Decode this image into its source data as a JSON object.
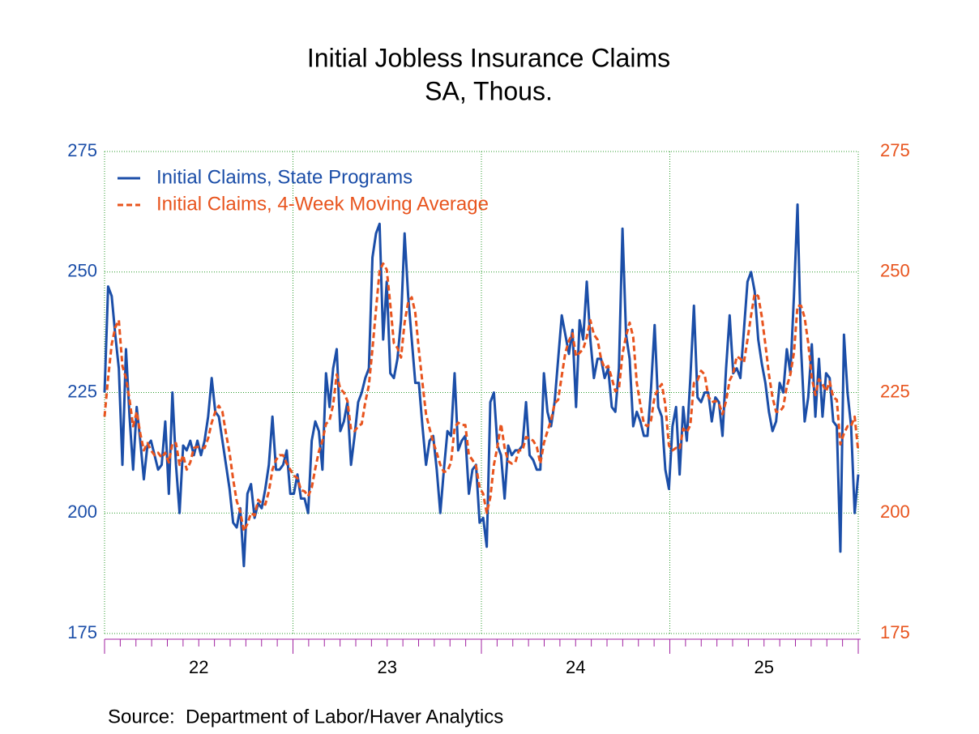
{
  "chart_data": {
    "type": "line",
    "title": "Initial Jobless Insurance Claims",
    "subtitle": "SA, Thous.",
    "source": "Source:  Department of Labor/Haver Analytics",
    "period_labels": [
      "22",
      "23",
      "24",
      "25"
    ],
    "ylim": [
      175,
      275
    ],
    "yticks": [
      175,
      200,
      225,
      250,
      275
    ],
    "y2lim": [
      175,
      275
    ],
    "y2ticks": [
      175,
      200,
      225,
      250,
      275
    ],
    "grid": true,
    "legend": "upper left",
    "series": [
      {
        "name": "Initial Claims, State Programs",
        "color": "#1b4ea8",
        "dash": "solid",
        "values": [
          225,
          247,
          245,
          237,
          230,
          210,
          234,
          220,
          209,
          222,
          215,
          207,
          214,
          215,
          212,
          209,
          210,
          219,
          204,
          225,
          210,
          200,
          214,
          213,
          215,
          212,
          215,
          212,
          215,
          220,
          228,
          221,
          220,
          215,
          210,
          205,
          198,
          197,
          201,
          189,
          204,
          206,
          199,
          202,
          201,
          205,
          210,
          220,
          209,
          209,
          210,
          213,
          204,
          204,
          208,
          203,
          203,
          200,
          215,
          219,
          217,
          209,
          229,
          222,
          230,
          234,
          217,
          219,
          223,
          210,
          216,
          223,
          225,
          228,
          230,
          253,
          258,
          260,
          236,
          248,
          229,
          228,
          232,
          240,
          258,
          245,
          236,
          227,
          227,
          218,
          210,
          215,
          216,
          209,
          200,
          209,
          217,
          216,
          229,
          213,
          215,
          216,
          204,
          209,
          210,
          198,
          199,
          193,
          223,
          225,
          214,
          212,
          203,
          214,
          212,
          213,
          213,
          214,
          223,
          212,
          211,
          209,
          209,
          229,
          221,
          218,
          223,
          232,
          241,
          237,
          233,
          238,
          222,
          240,
          236,
          248,
          236,
          228,
          232,
          232,
          228,
          230,
          222,
          221,
          230,
          259,
          237,
          232,
          218,
          221,
          219,
          216,
          216,
          226,
          239,
          222,
          220,
          209,
          205,
          218,
          222,
          208,
          222,
          215,
          228,
          243,
          224,
          223,
          225,
          225,
          219,
          224,
          223,
          216,
          230,
          241,
          229,
          230,
          228,
          238,
          248,
          250,
          246,
          236,
          231,
          227,
          221,
          217,
          219,
          227,
          225,
          234,
          229,
          245,
          264,
          234,
          219,
          224,
          235,
          220,
          232,
          220,
          229,
          228,
          219,
          218,
          192,
          237,
          225,
          218,
          200,
          208
        ]
      },
      {
        "name": "Initial Claims, 4-Week Moving Average",
        "color": "#e8541e",
        "dash": "dashed",
        "axis": "y2",
        "values": [
          220,
          228,
          235,
          238.5,
          240,
          230.5,
          228,
          223.5,
          218,
          221,
          216.5,
          213,
          214.5,
          213,
          212,
          212.5,
          211.5,
          212.5,
          210.5,
          214.5,
          214.5,
          210,
          212,
          209,
          210.5,
          213.5,
          213.75,
          213.5,
          213.5,
          215.5,
          218.75,
          221,
          222.25,
          221,
          216.5,
          212.5,
          207,
          202.5,
          200.25,
          196.25,
          197.75,
          200,
          199.5,
          202.75,
          202,
          201.75,
          204.5,
          209,
          211,
          212,
          212,
          210.25,
          209,
          207.75,
          207.25,
          204.75,
          204.5,
          203.5,
          205.25,
          209.25,
          212.75,
          215,
          218.5,
          219.25,
          222.5,
          228.75,
          225.75,
          225,
          223.25,
          217.25,
          217,
          218,
          218.5,
          223,
          226.5,
          234,
          242.25,
          250.25,
          251.75,
          250.5,
          243.25,
          235.25,
          234.25,
          232.25,
          239.5,
          243.75,
          244.75,
          241.5,
          233.75,
          227,
          220.5,
          217.5,
          214.75,
          212.5,
          210,
          208.5,
          208.75,
          210.5,
          217.75,
          218.75,
          218.25,
          218.25,
          212,
          211,
          209.75,
          205.25,
          204,
          200,
          203.25,
          210,
          213.75,
          218.5,
          213.5,
          210.75,
          210.25,
          210.5,
          213,
          213,
          215.75,
          215.5,
          215,
          213.75,
          210.25,
          214.5,
          217,
          219.25,
          222.75,
          223.5,
          228.5,
          233.25,
          235.75,
          237.25,
          232.5,
          233.25,
          234,
          236.5,
          240,
          237,
          236,
          232,
          230,
          230.5,
          228,
          225.25,
          225.75,
          233,
          236.75,
          239.5,
          236.5,
          227,
          222.5,
          218.5,
          218,
          219.25,
          224.25,
          225.75,
          226.75,
          222.5,
          214,
          213,
          213.5,
          213.25,
          217.5,
          216.75,
          218.25,
          227,
          227.5,
          229.5,
          228.75,
          224.25,
          223,
          223.25,
          222.75,
          220.5,
          223.25,
          227.5,
          229,
          232.5,
          232,
          231.25,
          236,
          241,
          245.5,
          245,
          240.75,
          235,
          228.75,
          224,
          221,
          221,
          222,
          226.25,
          228.75,
          233.25,
          243,
          243,
          240.5,
          235.25,
          228,
          224.5,
          227.75,
          226.75,
          225.25,
          227.25,
          224,
          223.5,
          214.25,
          216.5,
          218,
          218,
          220,
          212.75
        ]
      }
    ]
  }
}
